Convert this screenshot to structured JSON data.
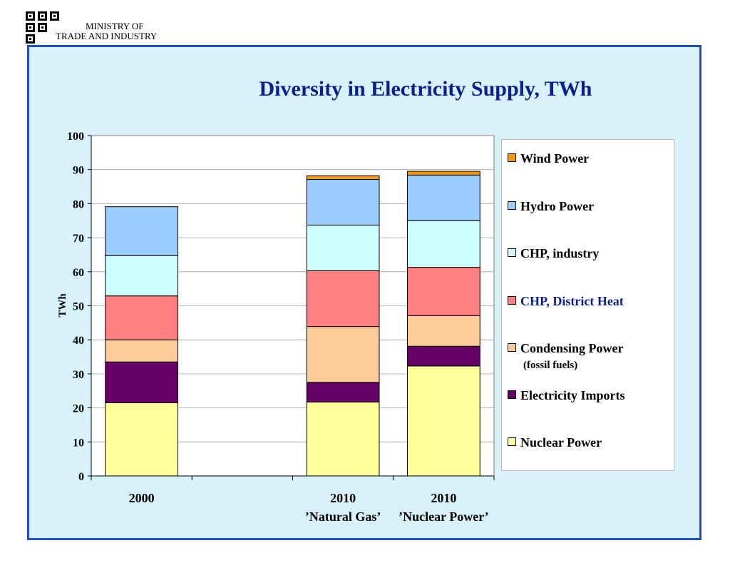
{
  "header": {
    "org_line1": "MINISTRY OF",
    "org_line2": "TRADE AND INDUSTRY"
  },
  "chart_data": {
    "type": "bar",
    "stacked": true,
    "title": "Diversity in Electricity Supply, TWh",
    "ylabel": "TWh",
    "xlabel": "",
    "ylim": [
      0,
      100
    ],
    "yticks": [
      0,
      10,
      20,
      30,
      40,
      50,
      60,
      70,
      80,
      90,
      100
    ],
    "grid": true,
    "legend_position": "right",
    "categories": [
      {
        "line1": "2000",
        "line2": ""
      },
      {
        "line1": "",
        "line2": ""
      },
      {
        "line1": "2010",
        "line2": "’Natural Gas’"
      },
      {
        "line1": "2010",
        "line2": "’Nuclear Power’"
      }
    ],
    "series": [
      {
        "name": "Nuclear Power",
        "color": "#ffff99",
        "values": [
          21.5,
          null,
          21.7,
          32.3
        ]
      },
      {
        "name": "Electricity Imports",
        "color": "#660066",
        "values": [
          12.0,
          null,
          5.8,
          5.8
        ]
      },
      {
        "name": "Condensing Power",
        "name_sub": "(fossil fuels)",
        "color": "#ffcc99",
        "values": [
          6.5,
          null,
          16.4,
          9.0
        ]
      },
      {
        "name": "CHP, District Heat",
        "color": "#ff8080",
        "values": [
          12.9,
          null,
          16.4,
          14.2
        ]
      },
      {
        "name": "CHP, industry",
        "color": "#ccffff",
        "values": [
          11.8,
          null,
          13.4,
          13.7
        ]
      },
      {
        "name": "Hydro Power",
        "color": "#99ccff",
        "values": [
          14.4,
          null,
          13.4,
          13.4
        ]
      },
      {
        "name": "Wind Power",
        "color": "#ff9900",
        "values": [
          0,
          null,
          1.1,
          1.1
        ]
      }
    ],
    "legend_order": [
      "Wind Power",
      "Hydro Power",
      "CHP, industry",
      "CHP, District Heat",
      "Condensing Power",
      "Electricity Imports",
      "Nuclear Power"
    ],
    "legend_highlight": {
      "name": "CHP, District Heat",
      "color": "#0a1f8f"
    }
  }
}
